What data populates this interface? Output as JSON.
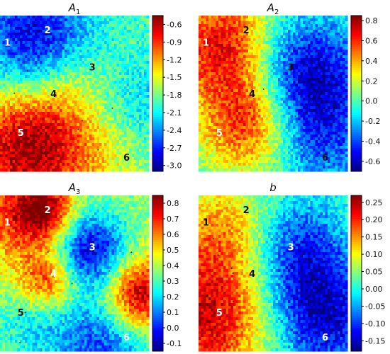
{
  "chart_data": [
    {
      "type": "heatmap",
      "title": "A",
      "title_subscript": "1",
      "colorbar": {
        "ticks": [
          "-0.6",
          "-0.9",
          "-1.2",
          "-1.5",
          "-1.8",
          "-2.1",
          "-2.4",
          "-2.7",
          "-3.0"
        ],
        "range": [
          -3.1,
          -0.45
        ]
      },
      "markers": [
        {
          "label": "1",
          "color": "#ffffff"
        },
        {
          "label": "2",
          "color": "#ffffff"
        },
        {
          "label": "3",
          "color": "#111111"
        },
        {
          "label": "4",
          "color": "#111111"
        },
        {
          "label": "5",
          "color": "#ffffff"
        },
        {
          "label": "6",
          "color": "#111111"
        }
      ],
      "field": {
        "base": -1.9,
        "blobs": [
          {
            "x": 0.25,
            "y": 0.18,
            "v": -1.1,
            "r": 0.28
          },
          {
            "x": 0.2,
            "y": 0.85,
            "v": 1.4,
            "r": 0.32
          },
          {
            "x": 0.55,
            "y": 0.45,
            "v": 0.5,
            "r": 0.25
          },
          {
            "x": 0.85,
            "y": 0.6,
            "v": -0.5,
            "r": 0.25
          },
          {
            "x": 0.8,
            "y": 0.9,
            "v": 0.3,
            "r": 0.2
          }
        ]
      }
    },
    {
      "type": "heatmap",
      "title": "A",
      "title_subscript": "2",
      "colorbar": {
        "ticks": [
          "0.8",
          "0.6",
          "0.4",
          "0.2",
          "0.0",
          "-0.2",
          "-0.4",
          "-0.6"
        ],
        "range": [
          -0.7,
          0.85
        ]
      },
      "markers": [
        {
          "label": "1",
          "color": "#ffffff"
        },
        {
          "label": "2",
          "color": "#111111"
        },
        {
          "label": "3",
          "color": "#111111"
        },
        {
          "label": "4",
          "color": "#111111"
        },
        {
          "label": "5",
          "color": "#ffffff"
        },
        {
          "label": "6",
          "color": "#111111"
        }
      ],
      "field": {
        "base": 0.05,
        "blobs": [
          {
            "x": 0.18,
            "y": 0.2,
            "v": 0.7,
            "r": 0.25
          },
          {
            "x": 0.35,
            "y": 0.68,
            "v": 0.65,
            "r": 0.22
          },
          {
            "x": 0.7,
            "y": 0.4,
            "v": -0.7,
            "r": 0.3
          },
          {
            "x": 0.85,
            "y": 0.85,
            "v": -0.3,
            "r": 0.25
          }
        ]
      }
    },
    {
      "type": "heatmap",
      "title": "A",
      "title_subscript": "3",
      "colorbar": {
        "ticks": [
          "0.8",
          "0.7",
          "0.6",
          "0.5",
          "0.4",
          "0.3",
          "0.2",
          "0.1",
          "0.0",
          "-0.1"
        ],
        "range": [
          -0.15,
          0.85
        ]
      },
      "markers": [
        {
          "label": "1",
          "color": "#ffffff"
        },
        {
          "label": "2",
          "color": "#ffffff"
        },
        {
          "label": "3",
          "color": "#ffffff"
        },
        {
          "label": "4",
          "color": "#ffffff"
        },
        {
          "label": "5",
          "color": "#111111"
        },
        {
          "label": "6",
          "color": "#ffffff"
        }
      ],
      "field": {
        "base": 0.38,
        "blobs": [
          {
            "x": 0.05,
            "y": 0.1,
            "v": 0.25,
            "r": 0.25
          },
          {
            "x": 0.3,
            "y": 0.1,
            "v": 0.4,
            "r": 0.14
          },
          {
            "x": 0.6,
            "y": 0.35,
            "v": -0.45,
            "r": 0.18
          },
          {
            "x": 0.33,
            "y": 0.55,
            "v": 0.35,
            "r": 0.14
          },
          {
            "x": 0.93,
            "y": 0.65,
            "v": 0.5,
            "r": 0.17
          },
          {
            "x": 0.2,
            "y": 0.82,
            "v": -0.15,
            "r": 0.18
          },
          {
            "x": 0.7,
            "y": 0.95,
            "v": -0.35,
            "r": 0.25
          }
        ]
      }
    },
    {
      "type": "heatmap",
      "title": "b",
      "title_subscript": "",
      "colorbar": {
        "ticks": [
          "0.25",
          "0.20",
          "0.15",
          "0.10",
          "0.05",
          "0.00",
          "-0.05",
          "-0.10",
          "-0.15"
        ],
        "range": [
          -0.18,
          0.27
        ]
      },
      "markers": [
        {
          "label": "1",
          "color": "#111111"
        },
        {
          "label": "2",
          "color": "#111111"
        },
        {
          "label": "3",
          "color": "#ffffff"
        },
        {
          "label": "4",
          "color": "#111111"
        },
        {
          "label": "5",
          "color": "#ffffff"
        },
        {
          "label": "6",
          "color": "#ffffff"
        }
      ],
      "field": {
        "base": 0.03,
        "blobs": [
          {
            "x": 0.05,
            "y": 0.8,
            "v": 0.2,
            "r": 0.3
          },
          {
            "x": 0.2,
            "y": 0.25,
            "v": 0.12,
            "r": 0.25
          },
          {
            "x": 0.65,
            "y": 0.35,
            "v": -0.15,
            "r": 0.25
          },
          {
            "x": 0.85,
            "y": 0.8,
            "v": -0.17,
            "r": 0.25
          }
        ]
      }
    }
  ]
}
